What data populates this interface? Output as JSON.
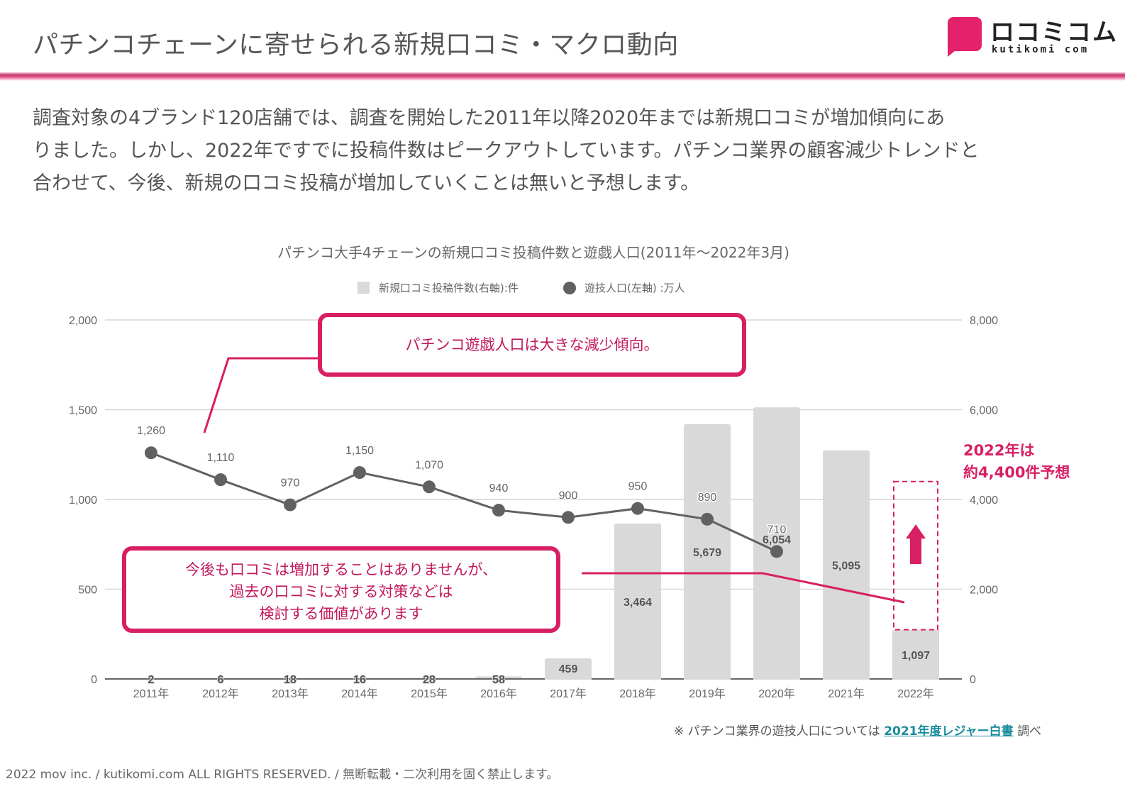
{
  "header": {
    "title": "パチンコチェーンに寄せられる新規口コミ・マクロ動向",
    "logo_kana": "ロコミコム",
    "logo_roman": "kutikomi com"
  },
  "lead": {
    "lines": [
      "調査対象の4ブランド120店舗では、調査を開始した2011年以降2020年までは新規口コミが増加傾向にあ",
      "りました。しかし、2022年ですでに投稿件数はピークアウトしています。パチンコ業界の顧客減少トレンドと",
      "合わせて、今後、新規の口コミ投稿が増加していくことは無いと予想します。"
    ]
  },
  "chart_data": {
    "type": "bar+line",
    "title": "パチンコ大手4チェーンの新規口コミ投稿件数と遊戯人口(2011年～2022年3月)",
    "categories": [
      "2011年",
      "2012年",
      "2013年",
      "2014年",
      "2015年",
      "2016年",
      "2017年",
      "2018年",
      "2019年",
      "2020年",
      "2021年",
      "2022年"
    ],
    "series": [
      {
        "name": "新規口コミ投稿件数(右軸):件",
        "type": "bar",
        "axis": "right",
        "color": "#d9d9d9",
        "values": [
          2,
          6,
          18,
          16,
          28,
          58,
          459,
          3464,
          5679,
          6054,
          5095,
          1097
        ],
        "labels": [
          "2",
          "6",
          "18",
          "16",
          "28",
          "58",
          "459",
          "3,464",
          "5,679",
          "6,054",
          "5,095",
          "1,097"
        ]
      },
      {
        "name": "遊技人口(左軸) :万人",
        "type": "line",
        "axis": "left",
        "color": "#616161",
        "values": [
          1260,
          1110,
          970,
          1150,
          1070,
          940,
          900,
          950,
          890,
          710,
          null,
          null
        ],
        "labels": [
          "1,260",
          "1,110",
          "970",
          "1,150",
          "1,070",
          "940",
          "900",
          "950",
          "890",
          "710",
          "",
          ""
        ]
      }
    ],
    "left_axis": {
      "ylim": [
        0,
        2000
      ],
      "ticks": [
        "0",
        "500",
        "1,000",
        "1,500",
        "2,000"
      ],
      "tick_values": [
        0,
        500,
        1000,
        1500,
        2000
      ]
    },
    "right_axis": {
      "ylim": [
        0,
        8000
      ],
      "ticks": [
        "0",
        "2,000",
        "4,000",
        "6,000",
        "8,000"
      ],
      "tick_values": [
        0,
        2000,
        4000,
        6000,
        8000
      ]
    },
    "grid": true,
    "legend_position": "top-center",
    "forecast": {
      "category": "2022年",
      "value": 4400,
      "note_lines": [
        "2022年は",
        "約4,400件予想"
      ]
    },
    "annotations": [
      "パチンコ遊戯人口は大きな減少傾向。",
      "今後も口コミは増加することはありませんが、過去の口コミに対する対策などは検討する価値があります"
    ]
  },
  "callouts": {
    "top": "パチンコ遊戯人口は大きな減少傾向。",
    "bottom": [
      "今後も口コミは増加することはありませんが、",
      "過去の口コミに対する対策などは",
      "検討する価値があります"
    ]
  },
  "forecast_note": [
    "2022年は",
    "約4,400件予想"
  ],
  "footer": {
    "source_prefix": "※ パチンコ業界の遊技人口については",
    "source_link": "2021年度レジャー白書",
    "source_suffix": "調べ",
    "copyright": "2022 mov inc. / kutikomi.com ALL RIGHTS RESERVED. / 無断転載・二次利用を固く禁止します。"
  },
  "colors": {
    "accent": "#d81f63",
    "bar": "#d9d9d9",
    "line": "#616161",
    "grid": "#d6d6d6",
    "link": "#1a8c9c"
  }
}
